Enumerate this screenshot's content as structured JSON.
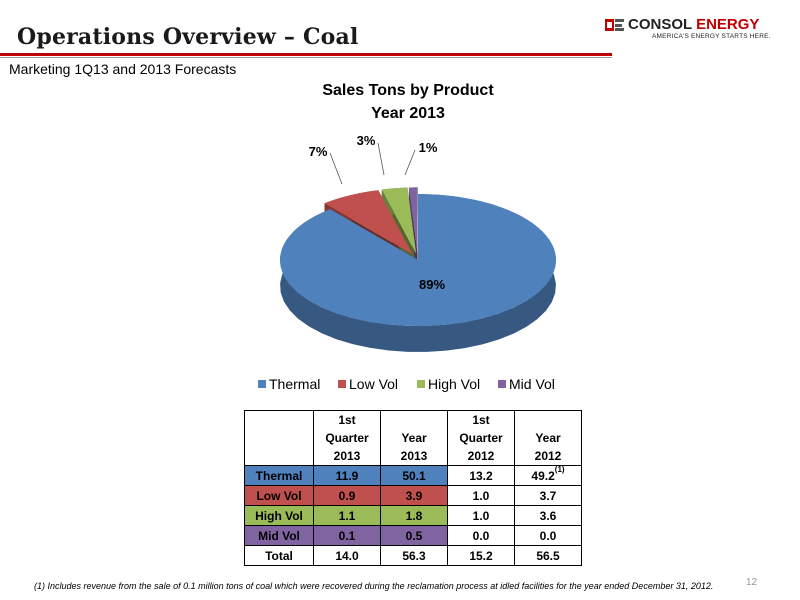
{
  "header": {
    "title": "Operations Overview – Coal",
    "subtitle": "Marketing 1Q13 and 2013 Forecasts"
  },
  "logo": {
    "name_part1": "CONSOL",
    "name_part2": "ENERGY",
    "tagline": "AMERICA'S ENERGY STARTS HERE."
  },
  "colors": {
    "accent_red": "#c00000",
    "thermal": "#4f81bd",
    "low_vol": "#c0504d",
    "high_vol": "#9bbb59",
    "mid_vol": "#8064a2"
  },
  "chart_data": {
    "type": "pie",
    "title_line1": "Sales Tons by Product",
    "title_line2": "Year 2013",
    "labels": [
      "Thermal",
      "Low Vol",
      "High Vol",
      "Mid Vol"
    ],
    "values": [
      89,
      7,
      3,
      1
    ],
    "value_labels": [
      "89%",
      "7%",
      "3%",
      "1%"
    ],
    "colors": [
      "#4f81bd",
      "#c0504d",
      "#9bbb59",
      "#8064a2"
    ],
    "legend_position": "bottom"
  },
  "table": {
    "columns": [
      [
        "1st",
        "Quarter",
        "2013"
      ],
      [
        "Year",
        "2013"
      ],
      [
        "1st",
        "Quarter",
        "2012"
      ],
      [
        "Year",
        "2012"
      ]
    ],
    "rows": [
      {
        "name": "Thermal",
        "values": [
          "11.9",
          "50.1",
          "13.2",
          "49.2"
        ],
        "note": "(1)"
      },
      {
        "name": "Low Vol",
        "values": [
          "0.9",
          "3.9",
          "1.0",
          "3.7"
        ],
        "note": ""
      },
      {
        "name": "High Vol",
        "values": [
          "1.1",
          "1.8",
          "1.0",
          "3.6"
        ],
        "note": ""
      },
      {
        "name": "Mid Vol",
        "values": [
          "0.1",
          "0.5",
          "0.0",
          "0.0"
        ],
        "note": ""
      },
      {
        "name": "Total",
        "values": [
          "14.0",
          "56.3",
          "15.2",
          "56.5"
        ],
        "note": ""
      }
    ]
  },
  "footnote": "(1)  Includes revenue from the sale of 0.1 million tons of coal which were recovered during the reclamation process at idled facilities for the year ended December 31, 2012.",
  "page_number": "12"
}
